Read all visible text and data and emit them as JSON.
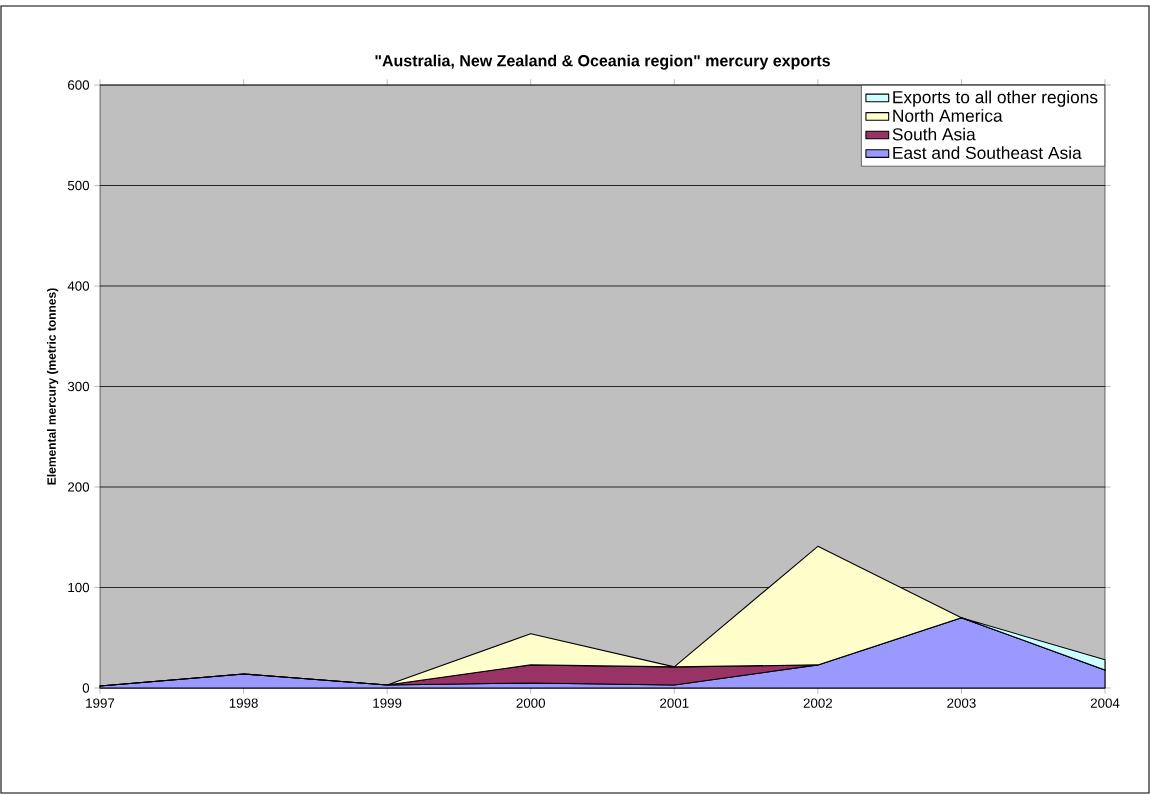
{
  "chart_data": {
    "type": "area",
    "stacked": true,
    "title": "\"Australia, New Zealand & Oceania region\" mercury exports",
    "ylabel": "Elemental mercury (metric tonnes)",
    "categories": [
      "1997",
      "1998",
      "1999",
      "2000",
      "2001",
      "2002",
      "2003",
      "2004"
    ],
    "series": [
      {
        "name": "East and Southeast Asia",
        "color": "#9999ff",
        "values": [
          2,
          14,
          3,
          5,
          3,
          23,
          70,
          18
        ]
      },
      {
        "name": "South Asia",
        "color": "#993366",
        "values": [
          0,
          0,
          0,
          18,
          18,
          0,
          0,
          0
        ]
      },
      {
        "name": "North America",
        "color": "#ffffcc",
        "values": [
          0,
          0,
          0,
          31,
          0,
          118,
          0,
          0
        ]
      },
      {
        "name": "Exports to all other regions",
        "color": "#ccffff",
        "values": [
          null,
          null,
          null,
          null,
          null,
          null,
          0,
          10
        ]
      }
    ],
    "ylim": [
      0,
      600
    ],
    "yticks": [
      0,
      100,
      200,
      300,
      400,
      500,
      600
    ],
    "grid": "y",
    "legend": "top right"
  }
}
